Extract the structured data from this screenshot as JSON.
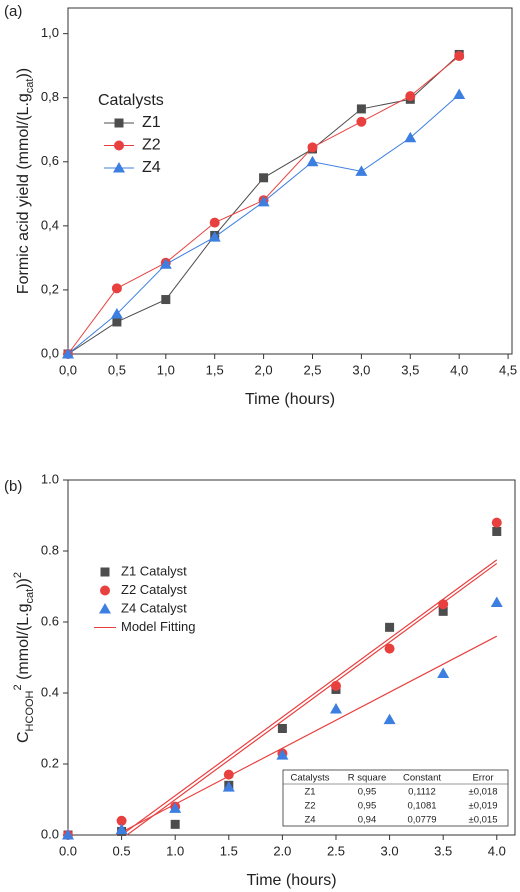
{
  "chart_data": [
    {
      "type": "line",
      "panel_label": "(a)",
      "xlabel": "Time (hours)",
      "ylabel": [
        {
          "text": "Formic acid yield (mmol/(L.g"
        },
        {
          "text": "cat",
          "shift": "sub"
        },
        {
          "text": "))"
        }
      ],
      "x": [
        0,
        0.5,
        1.0,
        1.5,
        2.0,
        2.5,
        3.0,
        3.5,
        4.0
      ],
      "connect": true,
      "legend_title": "Catalysts",
      "series": [
        {
          "name": "Z1",
          "color": "#4d4d4d",
          "marker": "square",
          "values": [
            0,
            0.1,
            0.17,
            0.37,
            0.55,
            0.64,
            0.765,
            0.795,
            0.935
          ]
        },
        {
          "name": "Z2",
          "color": "#e8403f",
          "marker": "circle",
          "values": [
            0,
            0.205,
            0.285,
            0.41,
            0.48,
            0.645,
            0.725,
            0.805,
            0.93
          ]
        },
        {
          "name": "Z4",
          "color": "#3d7fe0",
          "marker": "triangle",
          "values": [
            0,
            0.125,
            0.28,
            0.365,
            0.475,
            0.6,
            0.57,
            0.675,
            0.81
          ]
        }
      ],
      "xlim": [
        0,
        4.54
      ],
      "ylim": [
        0,
        1.08
      ],
      "xticks": [
        {
          "value": 0,
          "label": "0,0"
        },
        {
          "value": 0.5,
          "label": "0,5"
        },
        {
          "value": 1.0,
          "label": "1,0"
        },
        {
          "value": 1.5,
          "label": "1,5"
        },
        {
          "value": 2.0,
          "label": "2,0"
        },
        {
          "value": 2.5,
          "label": "2,5"
        },
        {
          "value": 3.0,
          "label": "3,0"
        },
        {
          "value": 3.5,
          "label": "3,5"
        },
        {
          "value": 4.0,
          "label": "4,0"
        },
        {
          "value": 4.5,
          "label": "4,5"
        }
      ],
      "yticks": [
        {
          "value": 0,
          "label": "0,0"
        },
        {
          "value": 0.2,
          "label": "0,2"
        },
        {
          "value": 0.4,
          "label": "0,4"
        },
        {
          "value": 0.6,
          "label": "0,6"
        },
        {
          "value": 0.8,
          "label": "0,8"
        },
        {
          "value": 1.0,
          "label": "1,0"
        }
      ]
    },
    {
      "type": "scatter",
      "panel_label": "(b)",
      "xlabel": "Time (hours)",
      "ylabel": [
        {
          "text": "C"
        },
        {
          "text": "HCOOH",
          "shift": "sub"
        },
        {
          "text": "2",
          "shift": "super"
        },
        {
          "text": " (mmol/(L.g"
        },
        {
          "text": "cat",
          "shift": "sub"
        },
        {
          "text": "))"
        },
        {
          "text": "2",
          "shift": "super"
        }
      ],
      "x": [
        0,
        0.5,
        1.0,
        1.5,
        2.0,
        2.5,
        3.0,
        3.5,
        4.0
      ],
      "connect": false,
      "series": [
        {
          "name": "Z1 Catalyst",
          "color": "#4d4d4d",
          "marker": "square",
          "values": [
            0,
            0.01,
            0.03,
            0.14,
            0.3,
            0.41,
            0.585,
            0.63,
            0.855
          ]
        },
        {
          "name": "Z2 Catalyst",
          "color": "#e8403f",
          "marker": "circle",
          "values": [
            0,
            0.04,
            0.08,
            0.17,
            0.23,
            0.42,
            0.525,
            0.65,
            0.88
          ]
        },
        {
          "name": "Z4 Catalyst",
          "color": "#3d7fe0",
          "marker": "triangle",
          "values": [
            0,
            0.015,
            0.075,
            0.135,
            0.225,
            0.355,
            0.325,
            0.455,
            0.655
          ]
        }
      ],
      "fits": {
        "name": "Model Fitting",
        "color": "#e8403f",
        "lines": [
          {
            "x": [
              0.55,
              4.0
            ],
            "values": [
              0,
              0.765
            ]
          },
          {
            "x": [
              0.5,
              4.0
            ],
            "values": [
              0,
              0.775
            ]
          },
          {
            "x": [
              0.45,
              4.0
            ],
            "values": [
              0,
              0.56
            ]
          }
        ]
      },
      "table": {
        "header": [
          "Catalysts",
          "R square",
          "Constant",
          "Error"
        ],
        "rows": [
          [
            "Z1",
            "0,95",
            "0,1112",
            "±0,018"
          ],
          [
            "Z2",
            "0,95",
            "0,1081",
            "±0,019"
          ],
          [
            "Z4",
            "0,94",
            "0,0779",
            "±0,015"
          ]
        ]
      },
      "xlim": [
        0,
        4.17
      ],
      "ylim": [
        0,
        1.0
      ],
      "xticks": [
        {
          "value": 0,
          "label": "0.0"
        },
        0.5,
        {
          "value": 1.0,
          "label": "1.0"
        },
        1.5,
        {
          "value": 2.0,
          "label": "2.0"
        },
        2.5,
        {
          "value": 3.0,
          "label": "3.0"
        },
        3.5,
        {
          "value": 4.0,
          "label": "4.0"
        }
      ],
      "yticks": [
        {
          "value": 0,
          "label": "0.0"
        },
        0.2,
        0.4,
        0.6,
        0.8,
        {
          "value": 1.0,
          "label": "1.0"
        }
      ]
    }
  ]
}
